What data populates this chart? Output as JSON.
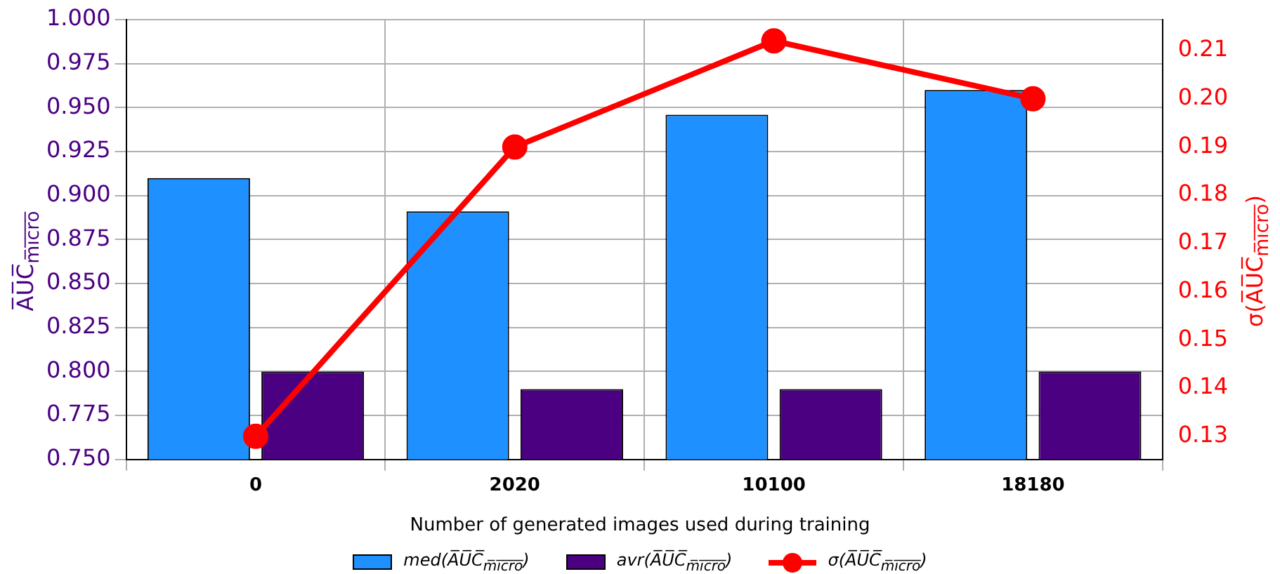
{
  "chart_data": {
    "type": "bar",
    "xlabel": "Number of generated images used during training",
    "ylabel": "A̅U̅C̅$_{m̅i̅c̅r̅o̅}$",
    "y2label": "σ(A̅U̅C̅$_{m̅i̅c̅r̅o̅}$)",
    "categories": [
      "0",
      "2020",
      "10100",
      "18180"
    ],
    "series": [
      {
        "name": "med(A̅U̅C̅$_{m̅i̅c̅r̅o̅}$)",
        "color": "#1e90ff",
        "values": [
          0.91,
          0.891,
          0.946,
          0.96
        ]
      },
      {
        "name": "avr(A̅U̅C̅$_{m̅i̅c̅r̅o̅}$)",
        "color": "#4b0082",
        "values": [
          0.8,
          0.79,
          0.79,
          0.8
        ]
      },
      {
        "name": "σ(A̅U̅C̅$_{m̅i̅c̅r̅o̅}$)",
        "type": "line",
        "axis": "y2",
        "color": "#ff0000",
        "values": [
          0.13,
          0.19,
          0.212,
          0.2
        ]
      }
    ],
    "ylim": [
      0.75,
      1.0
    ],
    "yticks": [
      {
        "value": 0.75,
        "label": "0.750"
      },
      0.775,
      {
        "value": 0.8,
        "label": "0.800"
      },
      0.825,
      {
        "value": 0.85,
        "label": "0.850"
      },
      0.875,
      {
        "value": 0.9,
        "label": "0.900"
      },
      0.925,
      {
        "value": 0.95,
        "label": "0.950"
      },
      0.975,
      {
        "value": 1.0,
        "label": "1.000"
      }
    ],
    "y2lim": [
      0.1252,
      0.2164
    ],
    "y2ticks": [
      0.13,
      0.14,
      0.15,
      0.16,
      0.17,
      0.18,
      0.19,
      {
        "value": 0.2,
        "label": "0.20"
      },
      0.21
    ],
    "grid": true,
    "legend": "bottom",
    "marker": "circle",
    "line_style": "solid"
  }
}
